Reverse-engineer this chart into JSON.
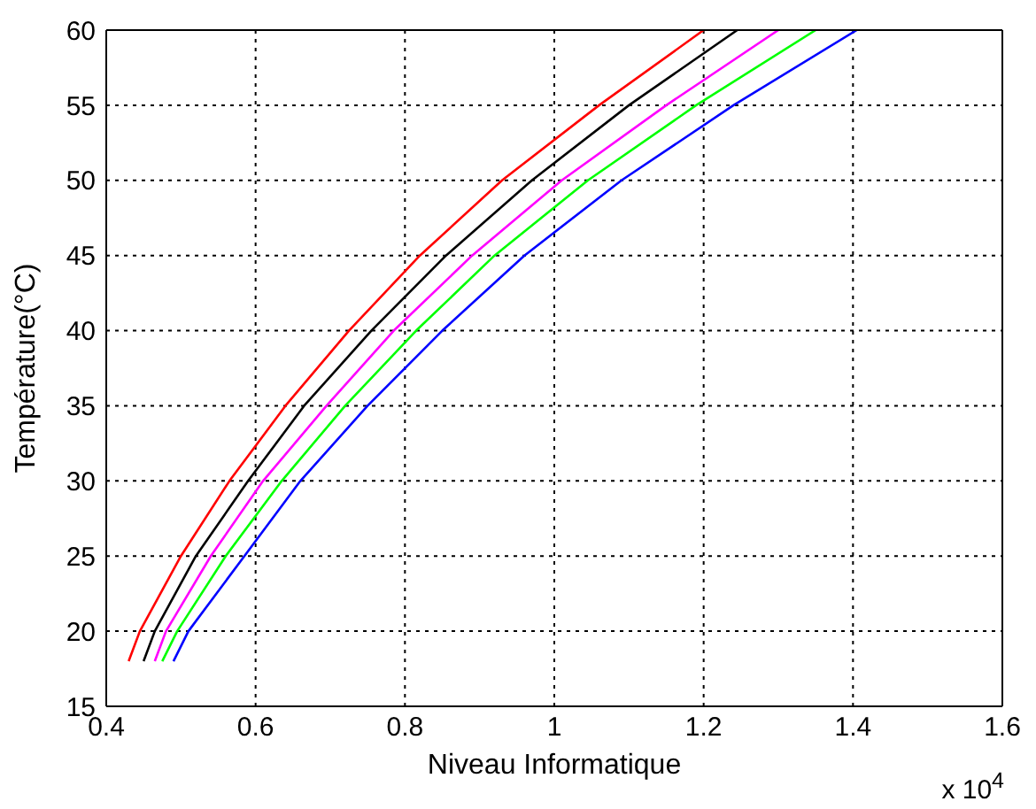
{
  "chart_data": {
    "type": "line",
    "xlabel": "Niveau Informatique",
    "ylabel": "Température(°C)",
    "annotations": [
      "x 10$^{4}$"
    ],
    "xlim": [
      0.4,
      1.6
    ],
    "xticks": [
      0.4,
      0.6,
      0.8,
      1,
      1.2,
      1.4,
      1.6
    ],
    "ylim": [
      15,
      60
    ],
    "yticks": [
      15,
      20,
      25,
      30,
      35,
      40,
      45,
      50,
      55,
      60
    ],
    "grid": true,
    "marker": "none",
    "line_style": "solid",
    "series": [
      {
        "color": "#ff0000",
        "x": [
          0.43,
          0.445,
          0.5,
          0.565,
          0.64,
          0.725,
          0.82,
          0.93,
          1.06,
          1.2
        ],
        "values": [
          18,
          20,
          25,
          30,
          35,
          40,
          45,
          50,
          55,
          60
        ]
      },
      {
        "color": "#000000",
        "x": [
          0.45,
          0.465,
          0.52,
          0.59,
          0.665,
          0.755,
          0.855,
          0.97,
          1.1,
          1.245
        ],
        "values": [
          18,
          20,
          25,
          30,
          35,
          40,
          45,
          50,
          55,
          60
        ]
      },
      {
        "color": "#ff00ff",
        "x": [
          0.465,
          0.48,
          0.54,
          0.61,
          0.695,
          0.785,
          0.89,
          1.01,
          1.15,
          1.3
        ],
        "values": [
          18,
          20,
          25,
          30,
          35,
          40,
          45,
          50,
          55,
          60
        ]
      },
      {
        "color": "#00ff00",
        "x": [
          0.475,
          0.495,
          0.56,
          0.635,
          0.72,
          0.815,
          0.92,
          1.045,
          1.19,
          1.35
        ],
        "values": [
          18,
          20,
          25,
          30,
          35,
          40,
          45,
          50,
          55,
          60
        ]
      },
      {
        "color": "#0000ff",
        "x": [
          0.49,
          0.51,
          0.585,
          0.66,
          0.75,
          0.85,
          0.96,
          1.09,
          1.24,
          1.405
        ],
        "values": [
          18,
          20,
          25,
          30,
          35,
          40,
          45,
          50,
          55,
          60
        ]
      }
    ]
  }
}
